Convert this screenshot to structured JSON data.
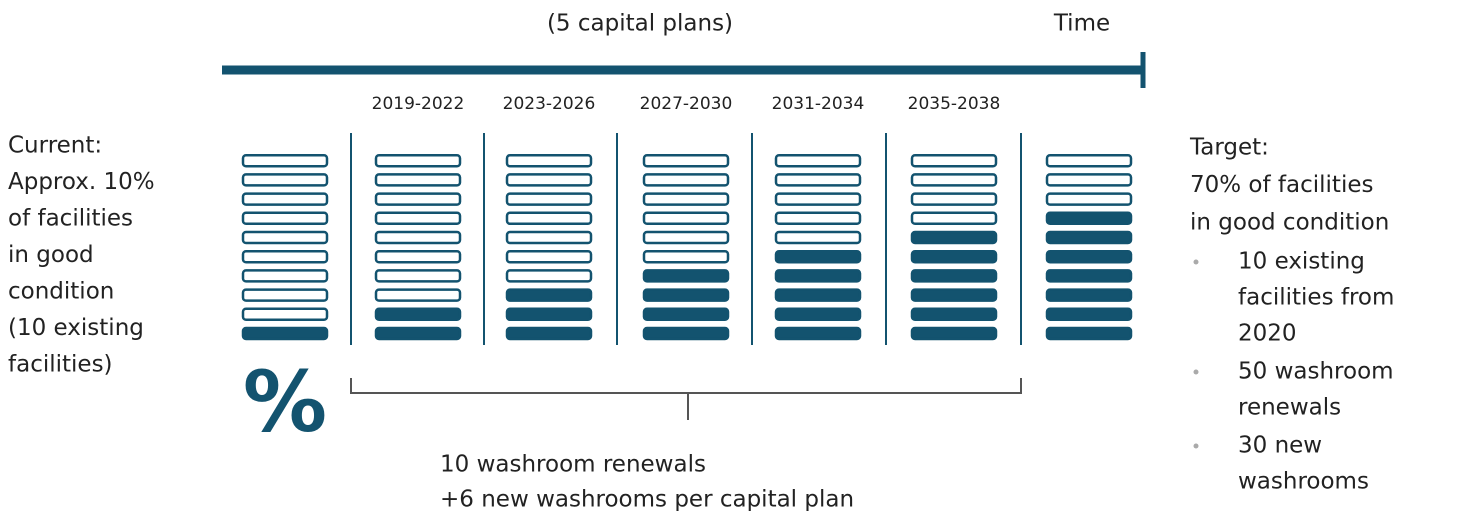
{
  "header": {
    "title": "(5 capital plans)",
    "axis_label": "Time"
  },
  "periods": [
    "2019-2022",
    "2023-2026",
    "2027-2030",
    "2031-2034",
    "2035-2038"
  ],
  "columns": {
    "bars_per_column": 10,
    "filled": [
      1,
      2,
      3,
      4,
      5,
      6,
      7
    ]
  },
  "current": {
    "lines": [
      "Current:",
      "Approx. 10%",
      "of facilities",
      "in good",
      "condition",
      "(10 existing",
      "facilities)"
    ],
    "symbol": "%"
  },
  "plan_note": {
    "lines": [
      "10 washroom renewals",
      "+6 new washrooms per capital plan"
    ]
  },
  "target": {
    "lines": [
      "Target:",
      "70% of facilities",
      "in good condition"
    ],
    "bullets": [
      [
        "10 existing",
        "facilities from",
        "2020"
      ],
      [
        "50 washroom",
        "renewals"
      ],
      [
        "30 new",
        "washrooms"
      ]
    ]
  }
}
